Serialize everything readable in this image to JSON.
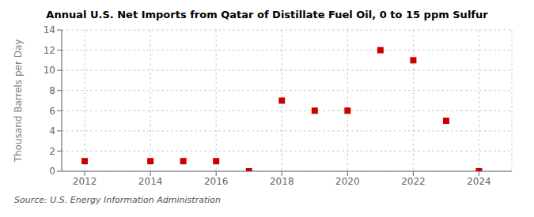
{
  "chart_data": {
    "type": "scatter",
    "title": "Annual U.S. Net Imports from Qatar of Distillate Fuel Oil, 0 to 15 ppm Sulfur",
    "ylabel": "Thousand Barrels per Day",
    "x": [
      2012,
      2014,
      2015,
      2016,
      2017,
      2018,
      2019,
      2020,
      2021,
      2022,
      2023,
      2024
    ],
    "values": [
      1,
      1,
      1,
      1,
      0,
      7,
      6,
      6,
      12,
      11,
      5,
      0
    ],
    "color": "#cc0000",
    "marker": "square",
    "xlim": [
      2011.3,
      2025.0
    ],
    "ylim": [
      0,
      14
    ],
    "xticks": [
      2012,
      2014,
      2016,
      2018,
      2020,
      2022,
      2024
    ],
    "yticks": [
      0,
      2,
      4,
      6,
      8,
      10,
      12,
      14
    ],
    "grid": true,
    "annotations": [
      "Source: U.S. Energy Information Administration"
    ]
  }
}
